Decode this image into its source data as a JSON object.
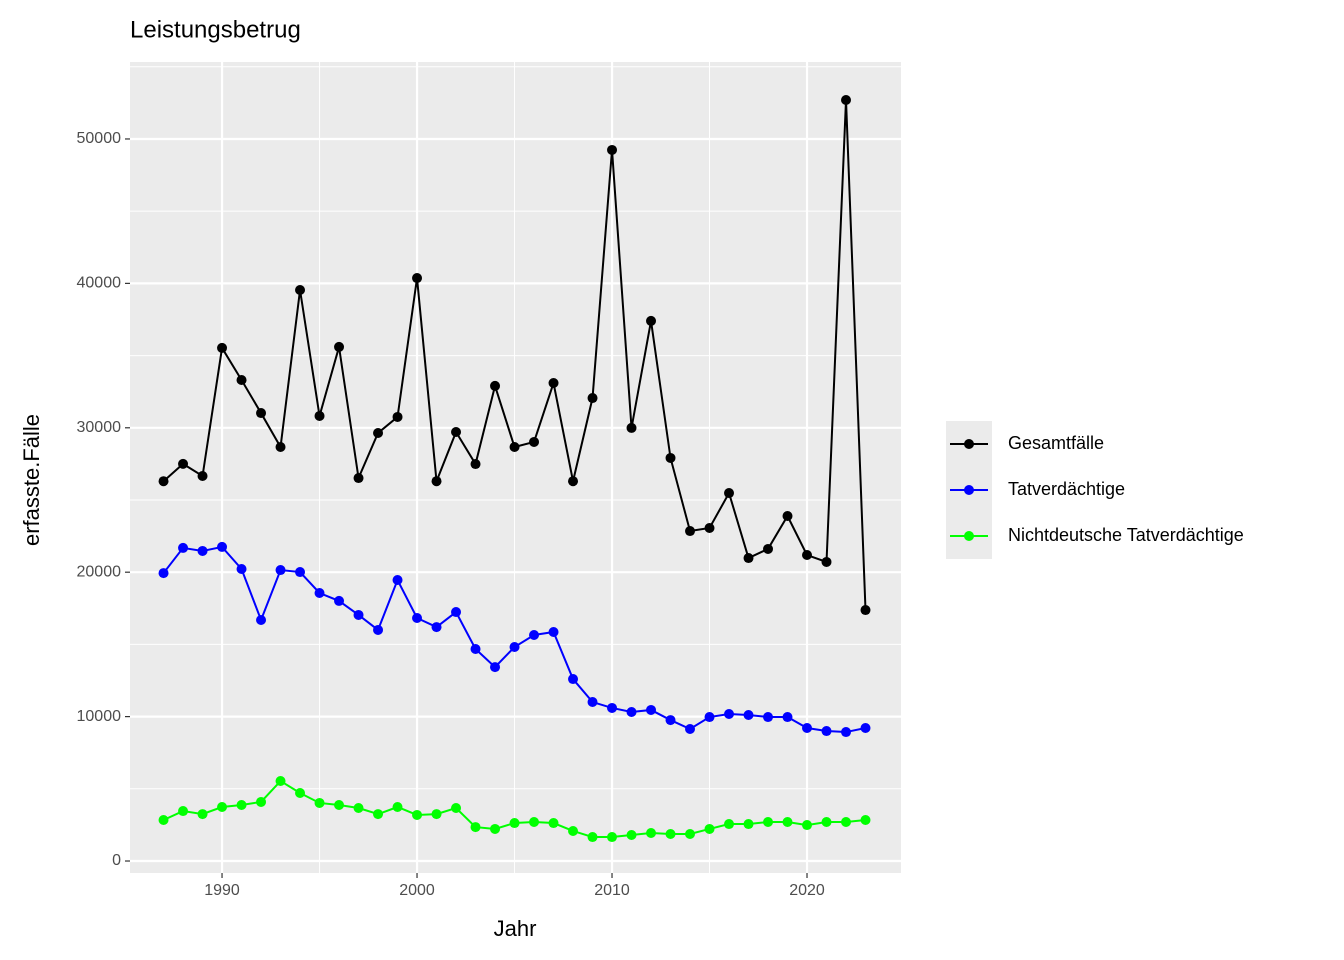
{
  "chart_data": {
    "type": "line",
    "title": "Leistungsbetrug",
    "xlabel": "Jahr",
    "ylabel": "erfasste.Fälle",
    "x": [
      1987,
      1988,
      1989,
      1990,
      1991,
      1992,
      1993,
      1994,
      1995,
      1996,
      1997,
      1998,
      1999,
      2000,
      2001,
      2002,
      2003,
      2004,
      2005,
      2006,
      2007,
      2008,
      2009,
      2010,
      2011,
      2012,
      2013,
      2014,
      2015,
      2016,
      2017,
      2018,
      2019,
      2020,
      2021,
      2022,
      2023
    ],
    "series": [
      {
        "name": "Gesamtfälle",
        "color": "#000000",
        "values": [
          26300,
          27500,
          26660,
          35530,
          33310,
          31020,
          28670,
          39540,
          30820,
          35600,
          26520,
          29640,
          30750,
          40370,
          26300,
          29710,
          27490,
          32900,
          28670,
          29020,
          33100,
          26300,
          32060,
          49240,
          29990,
          37400,
          27910,
          22850,
          23060,
          25480,
          20980,
          21610,
          23890,
          21190,
          20710,
          52700,
          17380
        ]
      },
      {
        "name": "Tatverdächtige",
        "color": "#0000ff",
        "values": [
          19940,
          21680,
          21470,
          21750,
          20220,
          16690,
          20150,
          20010,
          18560,
          18010,
          17040,
          16000,
          19460,
          16830,
          16200,
          17240,
          14680,
          13430,
          14820,
          15650,
          15860,
          12600,
          11010,
          10600,
          10320,
          10460,
          9760,
          9140,
          9970,
          10180,
          10110,
          9970,
          9970,
          9210,
          9000,
          8930,
          9210
        ]
      },
      {
        "name": "Nichtdeutsche Tatverdächtige",
        "color": "#00ff00",
        "values": [
          2840,
          3460,
          3250,
          3740,
          3880,
          4090,
          5540,
          4710,
          4020,
          3880,
          3670,
          3250,
          3740,
          3190,
          3250,
          3670,
          2350,
          2220,
          2630,
          2700,
          2630,
          2080,
          1660,
          1660,
          1800,
          1940,
          1870,
          1870,
          2220,
          2560,
          2560,
          2700,
          2700,
          2490,
          2700,
          2700,
          2840
        ]
      }
    ],
    "xlim": [
      1985.28,
      2024.82
    ],
    "xticks": [
      1990,
      2000,
      2010,
      2020
    ],
    "xminor": [
      1995,
      2005,
      2015
    ],
    "ylim": [
      -830,
      55330
    ],
    "yticks": [
      0,
      10000,
      20000,
      30000,
      40000,
      50000
    ],
    "yminor": [
      5000,
      15000,
      25000,
      35000,
      45000,
      55000
    ],
    "grid": true,
    "legend": "right"
  }
}
